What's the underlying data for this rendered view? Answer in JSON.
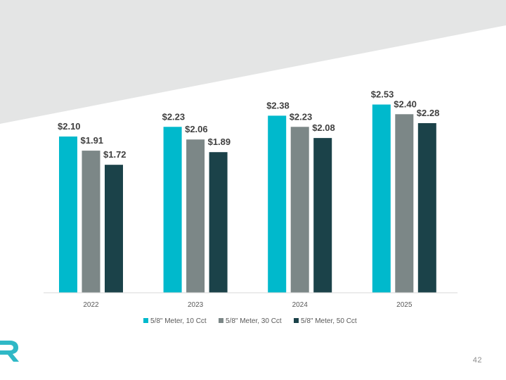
{
  "slide": {
    "page_number": "42",
    "background_band_color": "#e4e5e5"
  },
  "logo": {
    "icon": "brand-r-logo-icon",
    "color": "#2fb8c6"
  },
  "chart_data": {
    "type": "bar",
    "title": "",
    "xlabel": "",
    "ylabel": "",
    "categories": [
      "2022",
      "2023",
      "2024",
      "2025"
    ],
    "ylim": [
      0,
      2.8
    ],
    "grid": false,
    "legend_position": "bottom",
    "series": [
      {
        "name": "5/8\" Meter, 10 Cct",
        "color": "#00b9cc",
        "values": [
          2.1,
          2.23,
          2.38,
          2.53
        ],
        "labels": [
          "$2.10",
          "$2.23",
          "$2.38",
          "$2.53"
        ]
      },
      {
        "name": "5/8\" Meter, 30 Cct",
        "color": "#7c8787",
        "values": [
          1.91,
          2.06,
          2.23,
          2.4
        ],
        "labels": [
          "$1.91",
          "$2.06",
          "$2.23",
          "$2.40"
        ]
      },
      {
        "name": "5/8\" Meter, 50 Cct",
        "color": "#1b4249",
        "values": [
          1.72,
          1.89,
          2.08,
          2.28
        ],
        "labels": [
          "$1.72",
          "$1.89",
          "$2.08",
          "$2.28"
        ]
      }
    ]
  }
}
